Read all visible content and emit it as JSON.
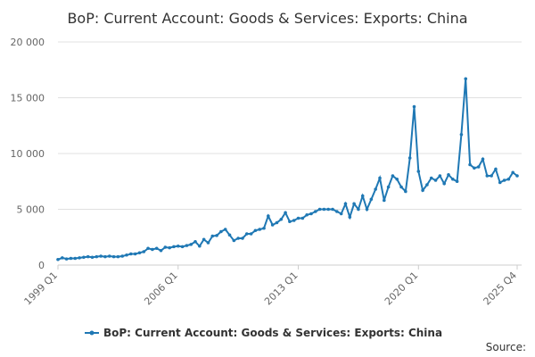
{
  "chart_data": {
    "type": "line",
    "title": "BoP: Current Account: Goods & Services: Exports: China",
    "source": "Source:",
    "categories": [
      "1999 Q1",
      null,
      null,
      null,
      null,
      null,
      null,
      null,
      null,
      null,
      null,
      null,
      null,
      null,
      null,
      null,
      null,
      null,
      null,
      null,
      null,
      null,
      null,
      null,
      null,
      null,
      null,
      null,
      "2006 Q1",
      null,
      null,
      null,
      null,
      null,
      null,
      null,
      null,
      null,
      null,
      null,
      null,
      null,
      null,
      null,
      null,
      null,
      null,
      null,
      null,
      null,
      null,
      null,
      null,
      null,
      null,
      null,
      "2013 Q1",
      null,
      null,
      null,
      null,
      null,
      null,
      null,
      null,
      null,
      null,
      null,
      null,
      null,
      null,
      null,
      null,
      null,
      null,
      null,
      null,
      null,
      null,
      null,
      null,
      null,
      null,
      null,
      "2020 Q1",
      null,
      null,
      null,
      null,
      null,
      null,
      null,
      null,
      null,
      null,
      null,
      null,
      null,
      null,
      null,
      null,
      null,
      null,
      null,
      null,
      null,
      null,
      "2025 Q4"
    ],
    "series": [
      {
        "name": "BoP: Current Account: Goods & Services: Exports: China",
        "color": "#1f78b4",
        "values": [
          500,
          650,
          550,
          600,
          600,
          650,
          700,
          750,
          700,
          750,
          800,
          750,
          800,
          750,
          750,
          800,
          900,
          1000,
          1000,
          1100,
          1200,
          1500,
          1400,
          1500,
          1300,
          1600,
          1550,
          1650,
          1700,
          1650,
          1750,
          1850,
          2100,
          1700,
          2300,
          2000,
          2600,
          2650,
          3000,
          3200,
          2700,
          2200,
          2400,
          2400,
          2800,
          2800,
          3100,
          3200,
          3300,
          4400,
          3600,
          3800,
          4100,
          4700,
          3900,
          4000,
          4200,
          4200,
          4500,
          4600,
          4800,
          5000,
          5000,
          5000,
          5000,
          4800,
          4600,
          5500,
          4300,
          5500,
          5000,
          6200,
          5000,
          5900,
          6800,
          7800,
          5800,
          7000,
          8000,
          7700,
          7000,
          6600,
          9600,
          14200,
          8400,
          6700,
          7200,
          7800,
          7600,
          8000,
          7300,
          8100,
          7700,
          7500,
          11700,
          16700,
          9000,
          8700,
          8800,
          9500,
          8000,
          8000,
          8600,
          7400,
          7600,
          7700,
          8300,
          8000
        ]
      }
    ],
    "ylim": [
      0,
      20000
    ],
    "yticks": [
      0,
      {
        "value": 5000,
        "label": "5 000"
      },
      {
        "value": 10000,
        "label": "10 000"
      },
      {
        "value": 15000,
        "label": "15 000"
      },
      {
        "value": 20000,
        "label": "20 000"
      }
    ],
    "grid": true
  }
}
